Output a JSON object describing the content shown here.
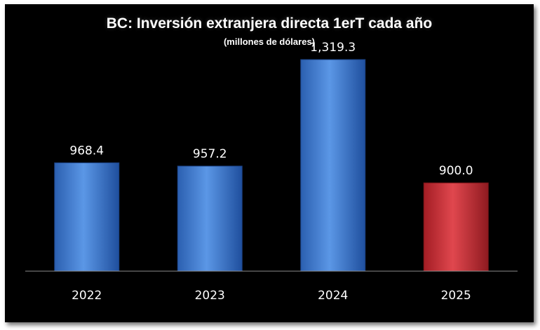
{
  "chart_data": {
    "type": "bar",
    "title": "BC: Inversión extranjera directa 1erT cada año",
    "subtitle": "(millones de dólares)",
    "categories": [
      "2022",
      "2023",
      "2024",
      "2025"
    ],
    "values": [
      968.4,
      957.2,
      1319.3,
      900.0
    ],
    "value_labels": [
      "968.4",
      "957.2",
      "1,319.3",
      "900.0"
    ],
    "bar_colors": [
      "#4a86d8",
      "#4a86d8",
      "#4a86d8",
      "#d9343c"
    ],
    "xlabel": "",
    "ylabel": "",
    "ylim": [
      600,
      1400
    ],
    "grid": false,
    "legend": "none"
  },
  "colors": {
    "background": "#000000",
    "text": "#ffffff",
    "axis": "#8c8c8c"
  }
}
